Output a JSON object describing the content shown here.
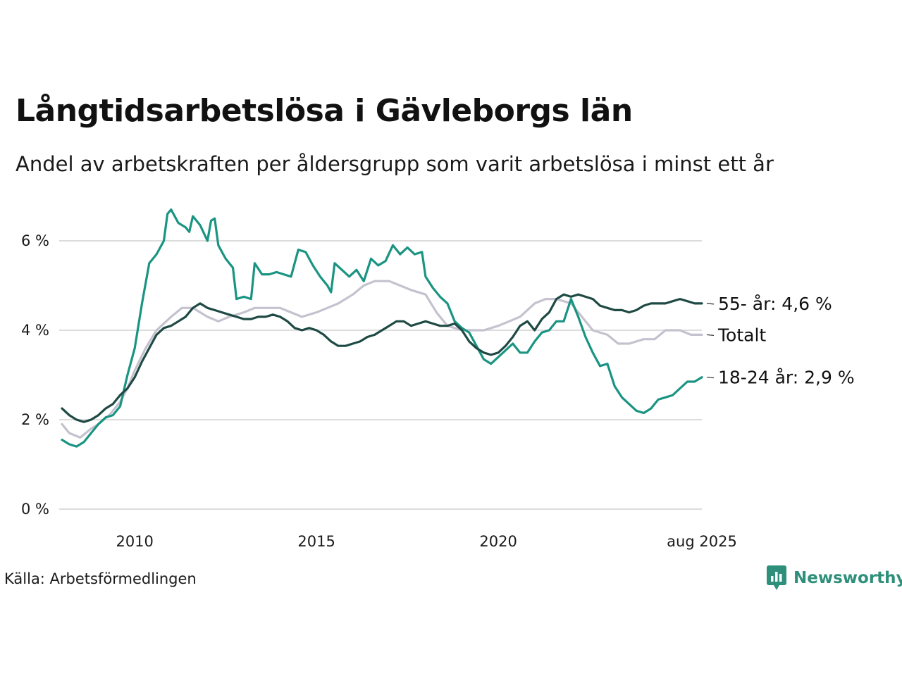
{
  "title": "Långtidsarbetslösa i Gävleborgs län",
  "subtitle": "Andel av arbetskraften per åldersgrupp som varit arbetslösa i minst ett år",
  "source": "Källa: Arbetsförmedlingen",
  "brand": {
    "name": "Newsworthy",
    "icon": "newsworthy-logo-icon",
    "color": "#2e8f7a"
  },
  "chart_data": {
    "type": "line",
    "title": "Långtidsarbetslösa i Gävleborgs län",
    "xlabel": "",
    "ylabel": "",
    "ylim": [
      0,
      6.8
    ],
    "xlim": [
      2008.0,
      2025.6
    ],
    "grid": true,
    "y_ticks": [
      {
        "value": 0,
        "label": "0 %"
      },
      {
        "value": 2,
        "label": "2 %"
      },
      {
        "value": 4,
        "label": "4 %"
      },
      {
        "value": 6,
        "label": "6 %"
      }
    ],
    "x_ticks": [
      {
        "value": 2010,
        "label": "2010"
      },
      {
        "value": 2015,
        "label": "2015"
      },
      {
        "value": 2020,
        "label": "2020"
      },
      {
        "value": 2025.6,
        "label": "aug 2025"
      }
    ],
    "series": [
      {
        "label": "Totalt",
        "color": "#c5c2cf",
        "points": [
          [
            2008.0,
            1.9
          ],
          [
            2008.2,
            1.7
          ],
          [
            2008.5,
            1.6
          ],
          [
            2008.8,
            1.8
          ],
          [
            2009.0,
            1.9
          ],
          [
            2009.3,
            2.1
          ],
          [
            2009.6,
            2.4
          ],
          [
            2009.8,
            2.7
          ],
          [
            2010.0,
            3.1
          ],
          [
            2010.3,
            3.6
          ],
          [
            2010.6,
            4.0
          ],
          [
            2011.0,
            4.3
          ],
          [
            2011.3,
            4.5
          ],
          [
            2011.6,
            4.5
          ],
          [
            2012.0,
            4.3
          ],
          [
            2012.3,
            4.2
          ],
          [
            2012.6,
            4.3
          ],
          [
            2013.0,
            4.4
          ],
          [
            2013.3,
            4.5
          ],
          [
            2013.6,
            4.5
          ],
          [
            2014.0,
            4.5
          ],
          [
            2014.3,
            4.4
          ],
          [
            2014.6,
            4.3
          ],
          [
            2015.0,
            4.4
          ],
          [
            2015.3,
            4.5
          ],
          [
            2015.6,
            4.6
          ],
          [
            2016.0,
            4.8
          ],
          [
            2016.3,
            5.0
          ],
          [
            2016.6,
            5.1
          ],
          [
            2017.0,
            5.1
          ],
          [
            2017.3,
            5.0
          ],
          [
            2017.6,
            4.9
          ],
          [
            2018.0,
            4.8
          ],
          [
            2018.3,
            4.4
          ],
          [
            2018.6,
            4.1
          ],
          [
            2019.0,
            4.0
          ],
          [
            2019.3,
            4.0
          ],
          [
            2019.6,
            4.0
          ],
          [
            2020.0,
            4.1
          ],
          [
            2020.3,
            4.2
          ],
          [
            2020.6,
            4.3
          ],
          [
            2021.0,
            4.6
          ],
          [
            2021.3,
            4.7
          ],
          [
            2021.6,
            4.7
          ],
          [
            2022.0,
            4.6
          ],
          [
            2022.3,
            4.3
          ],
          [
            2022.6,
            4.0
          ],
          [
            2023.0,
            3.9
          ],
          [
            2023.3,
            3.7
          ],
          [
            2023.6,
            3.7
          ],
          [
            2024.0,
            3.8
          ],
          [
            2024.3,
            3.8
          ],
          [
            2024.6,
            4.0
          ],
          [
            2025.0,
            4.0
          ],
          [
            2025.3,
            3.9
          ],
          [
            2025.6,
            3.9
          ]
        ]
      },
      {
        "label": "18-24 år: 2,9 %",
        "color": "#1a9482",
        "points": [
          [
            2008.0,
            1.55
          ],
          [
            2008.2,
            1.45
          ],
          [
            2008.4,
            1.4
          ],
          [
            2008.6,
            1.5
          ],
          [
            2008.8,
            1.7
          ],
          [
            2009.0,
            1.9
          ],
          [
            2009.2,
            2.05
          ],
          [
            2009.4,
            2.1
          ],
          [
            2009.6,
            2.3
          ],
          [
            2009.8,
            3.0
          ],
          [
            2010.0,
            3.6
          ],
          [
            2010.2,
            4.6
          ],
          [
            2010.4,
            5.5
          ],
          [
            2010.6,
            5.7
          ],
          [
            2010.8,
            6.0
          ],
          [
            2010.9,
            6.6
          ],
          [
            2011.0,
            6.7
          ],
          [
            2011.2,
            6.4
          ],
          [
            2011.4,
            6.3
          ],
          [
            2011.5,
            6.2
          ],
          [
            2011.6,
            6.55
          ],
          [
            2011.8,
            6.35
          ],
          [
            2012.0,
            6.0
          ],
          [
            2012.1,
            6.45
          ],
          [
            2012.2,
            6.5
          ],
          [
            2012.3,
            5.9
          ],
          [
            2012.5,
            5.6
          ],
          [
            2012.7,
            5.4
          ],
          [
            2012.8,
            4.7
          ],
          [
            2013.0,
            4.75
          ],
          [
            2013.2,
            4.7
          ],
          [
            2013.3,
            5.5
          ],
          [
            2013.5,
            5.25
          ],
          [
            2013.7,
            5.25
          ],
          [
            2013.9,
            5.3
          ],
          [
            2014.1,
            5.25
          ],
          [
            2014.3,
            5.2
          ],
          [
            2014.5,
            5.8
          ],
          [
            2014.7,
            5.75
          ],
          [
            2014.9,
            5.45
          ],
          [
            2015.1,
            5.2
          ],
          [
            2015.3,
            5.0
          ],
          [
            2015.4,
            4.85
          ],
          [
            2015.5,
            5.5
          ],
          [
            2015.7,
            5.35
          ],
          [
            2015.9,
            5.2
          ],
          [
            2016.1,
            5.35
          ],
          [
            2016.3,
            5.1
          ],
          [
            2016.5,
            5.6
          ],
          [
            2016.7,
            5.45
          ],
          [
            2016.9,
            5.55
          ],
          [
            2017.1,
            5.9
          ],
          [
            2017.3,
            5.7
          ],
          [
            2017.5,
            5.85
          ],
          [
            2017.7,
            5.7
          ],
          [
            2017.9,
            5.75
          ],
          [
            2018.0,
            5.2
          ],
          [
            2018.2,
            4.95
          ],
          [
            2018.4,
            4.75
          ],
          [
            2018.6,
            4.6
          ],
          [
            2018.8,
            4.2
          ],
          [
            2019.0,
            4.05
          ],
          [
            2019.2,
            3.95
          ],
          [
            2019.4,
            3.65
          ],
          [
            2019.6,
            3.35
          ],
          [
            2019.8,
            3.25
          ],
          [
            2020.0,
            3.4
          ],
          [
            2020.2,
            3.55
          ],
          [
            2020.4,
            3.7
          ],
          [
            2020.6,
            3.5
          ],
          [
            2020.8,
            3.5
          ],
          [
            2021.0,
            3.75
          ],
          [
            2021.2,
            3.95
          ],
          [
            2021.4,
            4.0
          ],
          [
            2021.6,
            4.2
          ],
          [
            2021.8,
            4.2
          ],
          [
            2022.0,
            4.7
          ],
          [
            2022.2,
            4.3
          ],
          [
            2022.4,
            3.85
          ],
          [
            2022.6,
            3.5
          ],
          [
            2022.8,
            3.2
          ],
          [
            2023.0,
            3.25
          ],
          [
            2023.2,
            2.75
          ],
          [
            2023.4,
            2.5
          ],
          [
            2023.6,
            2.35
          ],
          [
            2023.8,
            2.2
          ],
          [
            2024.0,
            2.15
          ],
          [
            2024.2,
            2.25
          ],
          [
            2024.4,
            2.45
          ],
          [
            2024.6,
            2.5
          ],
          [
            2024.8,
            2.55
          ],
          [
            2025.0,
            2.7
          ],
          [
            2025.2,
            2.85
          ],
          [
            2025.4,
            2.85
          ],
          [
            2025.6,
            2.95
          ]
        ]
      },
      {
        "label": "55- år: 4,6 %",
        "color": "#1f4a44",
        "points": [
          [
            2008.0,
            2.25
          ],
          [
            2008.2,
            2.1
          ],
          [
            2008.4,
            2.0
          ],
          [
            2008.6,
            1.95
          ],
          [
            2008.8,
            2.0
          ],
          [
            2009.0,
            2.1
          ],
          [
            2009.2,
            2.25
          ],
          [
            2009.4,
            2.35
          ],
          [
            2009.6,
            2.55
          ],
          [
            2009.8,
            2.7
          ],
          [
            2010.0,
            2.95
          ],
          [
            2010.2,
            3.3
          ],
          [
            2010.4,
            3.6
          ],
          [
            2010.6,
            3.9
          ],
          [
            2010.8,
            4.05
          ],
          [
            2011.0,
            4.1
          ],
          [
            2011.2,
            4.2
          ],
          [
            2011.4,
            4.3
          ],
          [
            2011.6,
            4.5
          ],
          [
            2011.8,
            4.6
          ],
          [
            2012.0,
            4.5
          ],
          [
            2012.2,
            4.45
          ],
          [
            2012.4,
            4.4
          ],
          [
            2012.6,
            4.35
          ],
          [
            2012.8,
            4.3
          ],
          [
            2013.0,
            4.25
          ],
          [
            2013.2,
            4.25
          ],
          [
            2013.4,
            4.3
          ],
          [
            2013.6,
            4.3
          ],
          [
            2013.8,
            4.35
          ],
          [
            2014.0,
            4.3
          ],
          [
            2014.2,
            4.2
          ],
          [
            2014.4,
            4.05
          ],
          [
            2014.6,
            4.0
          ],
          [
            2014.8,
            4.05
          ],
          [
            2015.0,
            4.0
          ],
          [
            2015.2,
            3.9
          ],
          [
            2015.4,
            3.75
          ],
          [
            2015.6,
            3.65
          ],
          [
            2015.8,
            3.65
          ],
          [
            2016.0,
            3.7
          ],
          [
            2016.2,
            3.75
          ],
          [
            2016.4,
            3.85
          ],
          [
            2016.6,
            3.9
          ],
          [
            2016.8,
            4.0
          ],
          [
            2017.0,
            4.1
          ],
          [
            2017.2,
            4.2
          ],
          [
            2017.4,
            4.2
          ],
          [
            2017.6,
            4.1
          ],
          [
            2017.8,
            4.15
          ],
          [
            2018.0,
            4.2
          ],
          [
            2018.2,
            4.15
          ],
          [
            2018.4,
            4.1
          ],
          [
            2018.6,
            4.1
          ],
          [
            2018.8,
            4.15
          ],
          [
            2019.0,
            4.0
          ],
          [
            2019.2,
            3.75
          ],
          [
            2019.4,
            3.6
          ],
          [
            2019.6,
            3.5
          ],
          [
            2019.8,
            3.45
          ],
          [
            2020.0,
            3.5
          ],
          [
            2020.2,
            3.65
          ],
          [
            2020.4,
            3.85
          ],
          [
            2020.6,
            4.1
          ],
          [
            2020.8,
            4.2
          ],
          [
            2021.0,
            4.0
          ],
          [
            2021.2,
            4.25
          ],
          [
            2021.4,
            4.4
          ],
          [
            2021.6,
            4.7
          ],
          [
            2021.8,
            4.8
          ],
          [
            2022.0,
            4.75
          ],
          [
            2022.2,
            4.8
          ],
          [
            2022.4,
            4.75
          ],
          [
            2022.6,
            4.7
          ],
          [
            2022.8,
            4.55
          ],
          [
            2023.0,
            4.5
          ],
          [
            2023.2,
            4.45
          ],
          [
            2023.4,
            4.45
          ],
          [
            2023.6,
            4.4
          ],
          [
            2023.8,
            4.45
          ],
          [
            2024.0,
            4.55
          ],
          [
            2024.2,
            4.6
          ],
          [
            2024.4,
            4.6
          ],
          [
            2024.6,
            4.6
          ],
          [
            2024.8,
            4.65
          ],
          [
            2025.0,
            4.7
          ],
          [
            2025.2,
            4.65
          ],
          [
            2025.4,
            4.6
          ],
          [
            2025.6,
            4.6
          ]
        ]
      }
    ]
  }
}
